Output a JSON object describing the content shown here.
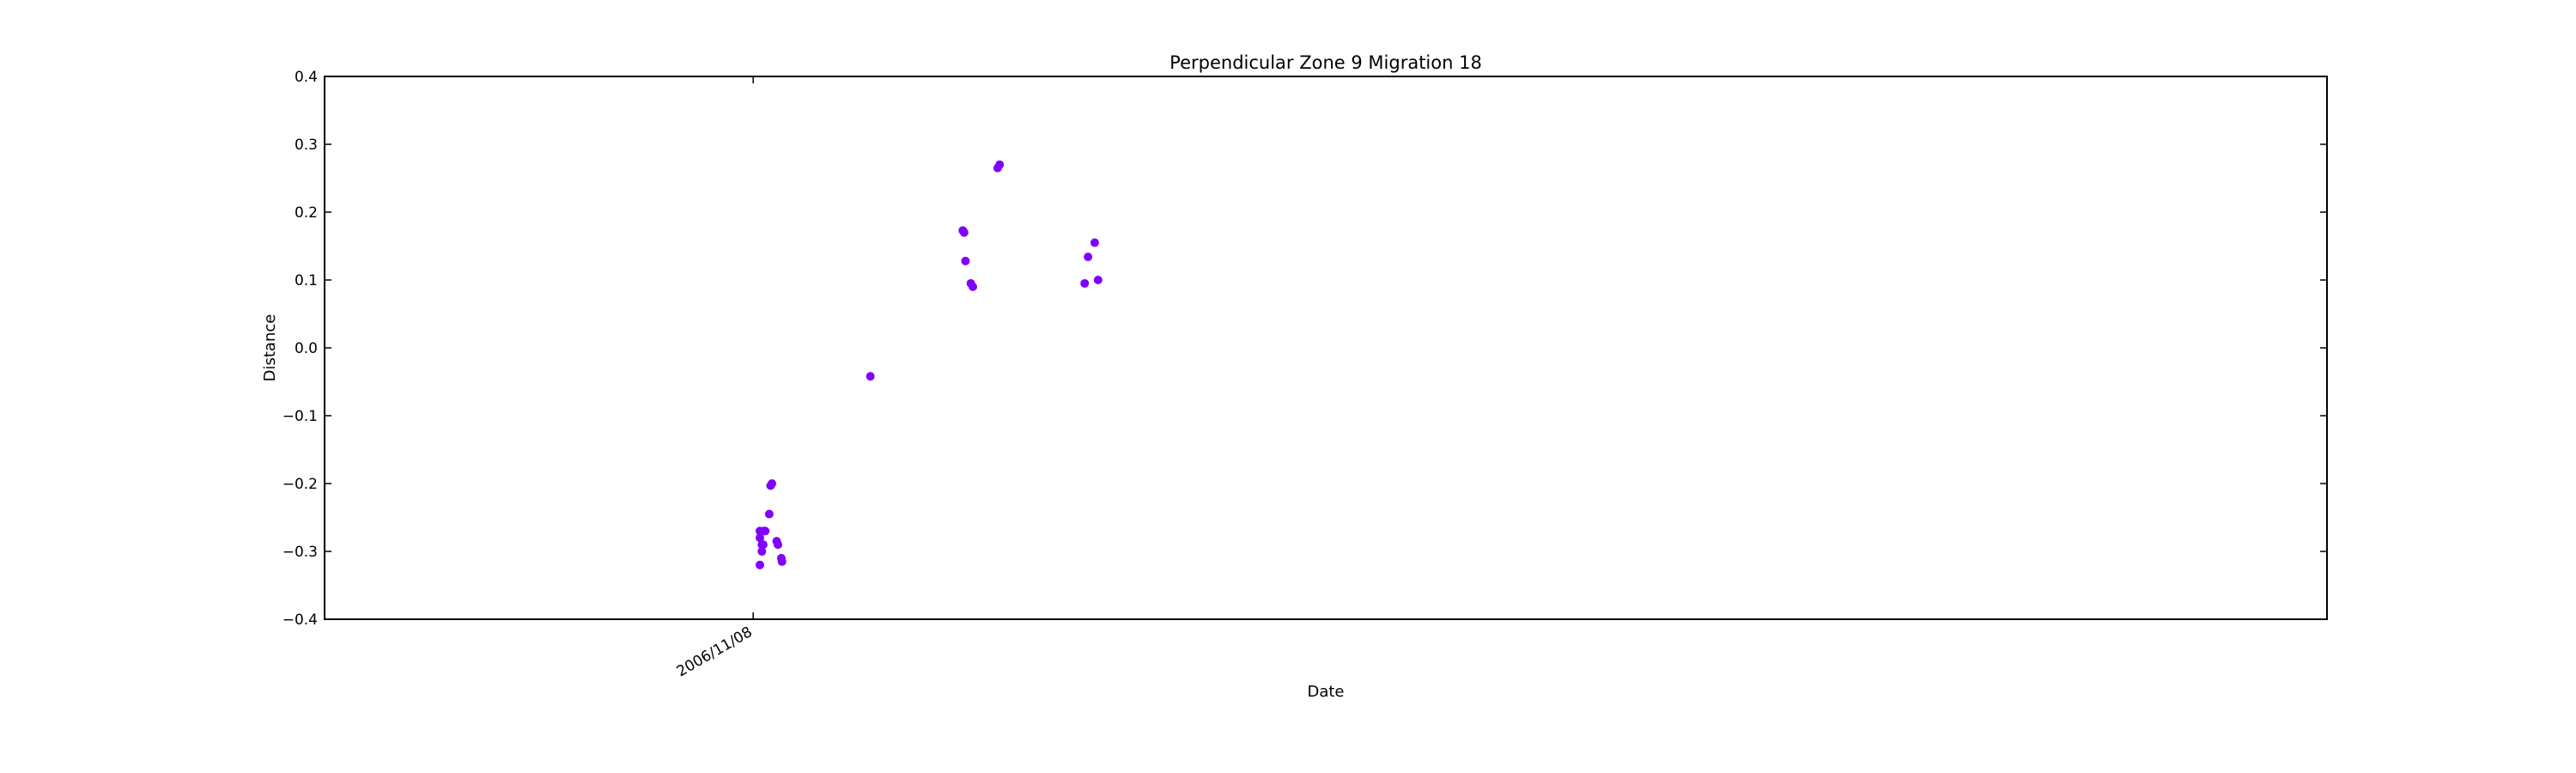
{
  "chart_data": {
    "type": "scatter",
    "title": "Perpendicular Zone 9 Migration 18",
    "xlabel": "Date",
    "ylabel": "Distance",
    "ylim": [
      -0.4,
      0.4
    ],
    "yticks": [
      -0.4,
      -0.3,
      -0.2,
      -0.1,
      0.0,
      0.1,
      0.2,
      0.3,
      0.4
    ],
    "ytick_labels": [
      "−0.4",
      "−0.3",
      "−0.2",
      "−0.1",
      "0.0",
      "0.1",
      "0.2",
      "0.3",
      "0.4"
    ],
    "xticks": [
      "2006/11/08"
    ],
    "grid": false,
    "marker_color": "#8000ff",
    "points": [
      {
        "x": 1.0,
        "y": -0.32
      },
      {
        "x": 1.0,
        "y": -0.28
      },
      {
        "x": 1.0,
        "y": -0.27
      },
      {
        "x": 1.3,
        "y": -0.29
      },
      {
        "x": 1.3,
        "y": -0.3
      },
      {
        "x": 1.5,
        "y": -0.29
      },
      {
        "x": 1.6,
        "y": -0.27
      },
      {
        "x": 1.8,
        "y": -0.27
      },
      {
        "x": 2.4,
        "y": -0.245
      },
      {
        "x": 2.6,
        "y": -0.203
      },
      {
        "x": 2.8,
        "y": -0.2
      },
      {
        "x": 3.5,
        "y": -0.285
      },
      {
        "x": 3.7,
        "y": -0.29
      },
      {
        "x": 4.2,
        "y": -0.31
      },
      {
        "x": 4.3,
        "y": -0.315
      },
      {
        "x": 17.5,
        "y": -0.042
      },
      {
        "x": 31.3,
        "y": 0.173
      },
      {
        "x": 31.5,
        "y": 0.17
      },
      {
        "x": 31.7,
        "y": 0.128
      },
      {
        "x": 32.5,
        "y": 0.095
      },
      {
        "x": 32.8,
        "y": 0.09
      },
      {
        "x": 36.5,
        "y": 0.265
      },
      {
        "x": 36.8,
        "y": 0.27
      },
      {
        "x": 49.5,
        "y": 0.095
      },
      {
        "x": 50.0,
        "y": 0.134
      },
      {
        "x": 51.0,
        "y": 0.155
      },
      {
        "x": 51.5,
        "y": 0.1
      }
    ]
  }
}
